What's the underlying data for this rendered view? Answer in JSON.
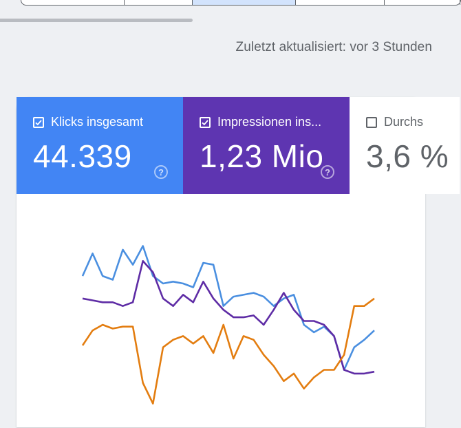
{
  "updated_text": "Zuletzt aktualisiert: vor 3 Stunden",
  "metrics": [
    {
      "label": "Klicks insgesamt",
      "value": "44.339",
      "checked": true,
      "color": "#4285f4"
    },
    {
      "label": "Impressionen ins...",
      "value": "1,23 Mio",
      "checked": true,
      "color": "#5e35b1"
    },
    {
      "label": "Durchs",
      "value": "3,6 %",
      "checked": false,
      "color": "#ffffff"
    }
  ],
  "help_icon": "?",
  "chart_data": {
    "type": "line",
    "title": "",
    "xlabel": "",
    "ylabel": "",
    "grid": false,
    "x": [
      1,
      2,
      3,
      4,
      5,
      6,
      7,
      8,
      9,
      10,
      11,
      12,
      13,
      14,
      15,
      16,
      17,
      18,
      19,
      20,
      21,
      22,
      23,
      24,
      25,
      26,
      27,
      28,
      29,
      30
    ],
    "series": [
      {
        "name": "Klicks insgesamt",
        "color": "#4a8fe0",
        "values": [
          62,
          74,
          62,
          60,
          76,
          68,
          78,
          62,
          58,
          59,
          58,
          56,
          69,
          68,
          46,
          51,
          52,
          53,
          51,
          46,
          50,
          52,
          36,
          32,
          35,
          30,
          12,
          24,
          28,
          33
        ]
      },
      {
        "name": "Impressionen ins...",
        "color": "#5e2ca5",
        "values": [
          50,
          49,
          48,
          48,
          46,
          48,
          70,
          64,
          50,
          46,
          52,
          48,
          59,
          50,
          44,
          40,
          40,
          41,
          36,
          44,
          53,
          44,
          38,
          38,
          36,
          30,
          12,
          10,
          10,
          11
        ]
      },
      {
        "name": "Durchs",
        "color": "#e37d10",
        "values": [
          25,
          33,
          36,
          34,
          35,
          35,
          5,
          -6,
          24,
          28,
          30,
          26,
          30,
          21,
          36,
          18,
          30,
          28,
          20,
          14,
          6,
          10,
          2,
          8,
          12,
          12,
          20,
          46,
          46,
          50
        ]
      }
    ],
    "ylim": [
      -8,
      80
    ]
  }
}
